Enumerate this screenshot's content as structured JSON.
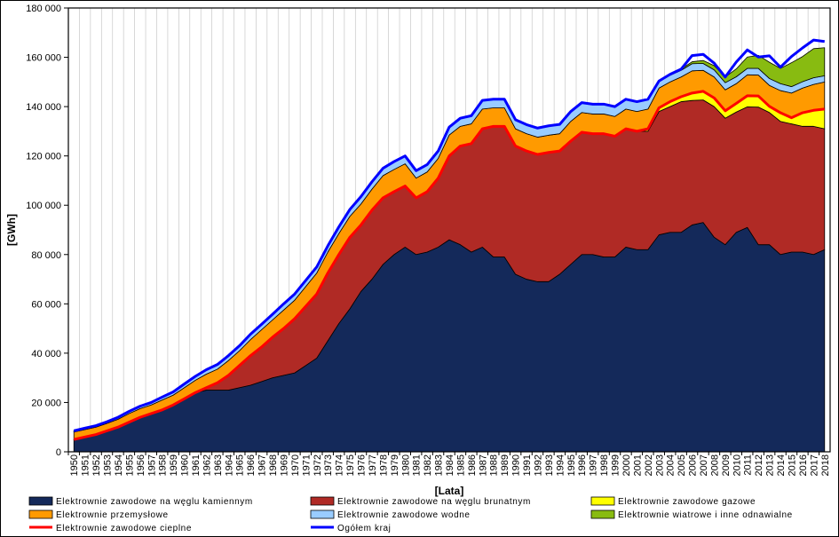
{
  "chart_data": {
    "type": "area",
    "stacked": true,
    "xlabel": "[Lata]",
    "ylabel": "[GWh]",
    "ylim": [
      0,
      180000
    ],
    "yticks": [
      0,
      20000,
      40000,
      60000,
      80000,
      100000,
      120000,
      140000,
      160000,
      180000
    ],
    "ytick_labels": [
      "0",
      "20 000",
      "40 000",
      "60 000",
      "80 000",
      "100 000",
      "120 000",
      "140 000",
      "160 000",
      "180 000"
    ],
    "grid": "vertical",
    "legend_position": "bottom",
    "x": [
      1950,
      1951,
      1952,
      1953,
      1954,
      1955,
      1956,
      1957,
      1958,
      1959,
      1960,
      1961,
      1962,
      1963,
      1964,
      1965,
      1966,
      1967,
      1968,
      1969,
      1970,
      1971,
      1972,
      1973,
      1974,
      1975,
      1976,
      1977,
      1978,
      1979,
      1980,
      1981,
      1982,
      1983,
      1984,
      1985,
      1986,
      1987,
      1988,
      1989,
      1990,
      1991,
      1992,
      1993,
      1994,
      1995,
      1996,
      1997,
      1998,
      1999,
      2000,
      2001,
      2002,
      2003,
      2004,
      2005,
      2006,
      2007,
      2008,
      2009,
      2010,
      2011,
      2012,
      2013,
      2014,
      2015,
      2016,
      2017,
      2018
    ],
    "series": [
      {
        "name": "Elektrownie zawodowe na węglu kamiennym",
        "kind": "area",
        "color": "#14295a",
        "values": [
          5000,
          6000,
          7000,
          8500,
          10000,
          12000,
          14000,
          15500,
          17000,
          19000,
          21500,
          24000,
          25000,
          25000,
          25000,
          26000,
          27000,
          28500,
          30000,
          31000,
          32000,
          35000,
          38000,
          45000,
          52000,
          58000,
          65000,
          70000,
          76000,
          80000,
          83000,
          80000,
          81000,
          83000,
          86000,
          84000,
          81000,
          83000,
          79000,
          79000,
          72000,
          70000,
          69000,
          69000,
          72000,
          76000,
          80000,
          80000,
          79000,
          79000,
          83000,
          82000,
          82000,
          88000,
          89000,
          89000,
          92000,
          93000,
          87000,
          84000,
          89000,
          91000,
          84000,
          84000,
          80000,
          81000,
          81000,
          80000,
          82000
        ]
      },
      {
        "name": "Elektrownie zawodowe na węglu brunatnym",
        "kind": "area",
        "color": "#b02a25",
        "values": [
          0,
          0,
          0,
          0,
          0,
          0,
          0,
          0,
          0,
          0,
          0,
          0,
          1000,
          3000,
          6000,
          9000,
          12000,
          14000,
          16500,
          19000,
          22000,
          24000,
          26000,
          27500,
          28000,
          29000,
          27000,
          28000,
          27000,
          25500,
          24800,
          23000,
          24500,
          28000,
          34000,
          40000,
          44000,
          48000,
          53000,
          53000,
          52000,
          52000,
          51600,
          52400,
          50000,
          50000,
          49600,
          49000,
          50000,
          49000,
          48000,
          48000,
          48000,
          50000,
          51000,
          53000,
          50500,
          49700,
          53000,
          51300,
          48800,
          48900,
          55800,
          53600,
          54000,
          52000,
          51000,
          52000,
          49000
        ]
      },
      {
        "name": "Elektrownie zawodowe gazowe",
        "kind": "area",
        "color": "#ffff00",
        "values": [
          0,
          0,
          0,
          0,
          0,
          0,
          0,
          0,
          0,
          0,
          0,
          0,
          0,
          0,
          0,
          0,
          0,
          0,
          0,
          0,
          0,
          0,
          0,
          0,
          0,
          0,
          0,
          0,
          0,
          0,
          0,
          0,
          0,
          0,
          0,
          0,
          0,
          0,
          0,
          0,
          0,
          0,
          0,
          0,
          0,
          0,
          0,
          0,
          0,
          0,
          0,
          0,
          1000,
          1500,
          2000,
          2000,
          3000,
          3500,
          3500,
          3000,
          3500,
          4500,
          4500,
          2500,
          3500,
          2500,
          5500,
          6500,
          8000
        ]
      },
      {
        "name": "Elektrownie zawodowe cieplne",
        "kind": "line",
        "color": "#ff0000",
        "values": [
          5000,
          6000,
          7000,
          8500,
          10000,
          12000,
          14000,
          15500,
          17000,
          19000,
          21500,
          24000,
          26000,
          28000,
          31000,
          35000,
          39000,
          42500,
          46500,
          50000,
          54000,
          59000,
          64000,
          72500,
          80000,
          87000,
          92000,
          98000,
          103000,
          105500,
          107800,
          103000,
          105500,
          111000,
          120000,
          124000,
          125000,
          131000,
          132000,
          132000,
          124000,
          122000,
          120600,
          121400,
          122000,
          126000,
          129600,
          129000,
          129000,
          128000,
          131000,
          130000,
          131000,
          139500,
          142000,
          144000,
          145500,
          146200,
          143500,
          138300,
          141300,
          144400,
          144300,
          140100,
          137500,
          135500,
          137500,
          138500,
          139000
        ]
      },
      {
        "name": "Elektrownie przemysłowe",
        "kind": "area",
        "color": "#ff9a00",
        "values": [
          3000,
          3000,
          3000,
          3000,
          3200,
          3500,
          3500,
          3500,
          4000,
          4000,
          4500,
          5000,
          5500,
          5500,
          6000,
          6000,
          6500,
          7000,
          7000,
          7500,
          7500,
          8000,
          8500,
          8500,
          8500,
          8500,
          8500,
          8500,
          9000,
          9000,
          9000,
          8000,
          8000,
          8000,
          8500,
          8000,
          8000,
          8000,
          7500,
          7500,
          7000,
          7000,
          7000,
          7000,
          7000,
          8000,
          8000,
          8000,
          8000,
          8000,
          8000,
          8000,
          8000,
          8000,
          8000,
          8000,
          9000,
          8500,
          8500,
          8500,
          8000,
          8500,
          8500,
          8500,
          9000,
          10000,
          10000,
          10500,
          11000
        ]
      },
      {
        "name": "Elektrownie zawodowe wodne",
        "kind": "area",
        "color": "#99ccff",
        "values": [
          500,
          600,
          600,
          700,
          800,
          900,
          1000,
          1000,
          1200,
          1300,
          1500,
          1600,
          1800,
          1900,
          2000,
          2000,
          2200,
          2200,
          2300,
          2500,
          2500,
          2500,
          2500,
          2500,
          2700,
          2800,
          3000,
          3000,
          3000,
          3200,
          3200,
          3000,
          3000,
          3000,
          3200,
          3300,
          3300,
          3500,
          3500,
          3500,
          3700,
          3700,
          3700,
          3800,
          3800,
          4000,
          4000,
          4000,
          4000,
          4000,
          4000,
          4000,
          4000,
          2600,
          2700,
          2700,
          2900,
          2800,
          2900,
          2900,
          2800,
          2600,
          2700,
          2800,
          2800,
          2600,
          2600,
          2700,
          2500
        ]
      },
      {
        "name": "Elektrownie wiatrowe i inne odnawialne",
        "kind": "area",
        "color": "#88bb11",
        "values": [
          0,
          0,
          0,
          0,
          0,
          0,
          0,
          0,
          0,
          0,
          0,
          0,
          0,
          0,
          0,
          0,
          0,
          0,
          0,
          0,
          0,
          0,
          0,
          0,
          0,
          0,
          0,
          0,
          0,
          0,
          0,
          0,
          0,
          0,
          0,
          0,
          0,
          0,
          0,
          0,
          0,
          0,
          0,
          0,
          0,
          0,
          0,
          0,
          0,
          0,
          0,
          0,
          0,
          300,
          400,
          500,
          800,
          1200,
          1700,
          2300,
          3200,
          4600,
          5300,
          6600,
          6200,
          9700,
          10200,
          11800,
          11400
        ]
      },
      {
        "name": "Ogółem kraj",
        "kind": "line",
        "color": "#0000ff",
        "values": [
          8500,
          9600,
          10600,
          12200,
          14000,
          16400,
          18500,
          20000,
          22200,
          24300,
          27500,
          30600,
          33300,
          35400,
          39000,
          43000,
          47700,
          51700,
          55800,
          60000,
          64000,
          69500,
          75000,
          83500,
          91200,
          98300,
          103500,
          109500,
          115000,
          117700,
          120000,
          114000,
          116500,
          122000,
          131700,
          135300,
          136300,
          142500,
          143000,
          143000,
          134700,
          132700,
          131300,
          132200,
          132800,
          138000,
          141600,
          141000,
          141000,
          140000,
          143000,
          142000,
          143000,
          150400,
          153100,
          155200,
          160700,
          161200,
          157600,
          152000,
          158100,
          163000,
          160100,
          160600,
          156000,
          160300,
          163800,
          167000,
          166400
        ]
      }
    ]
  }
}
